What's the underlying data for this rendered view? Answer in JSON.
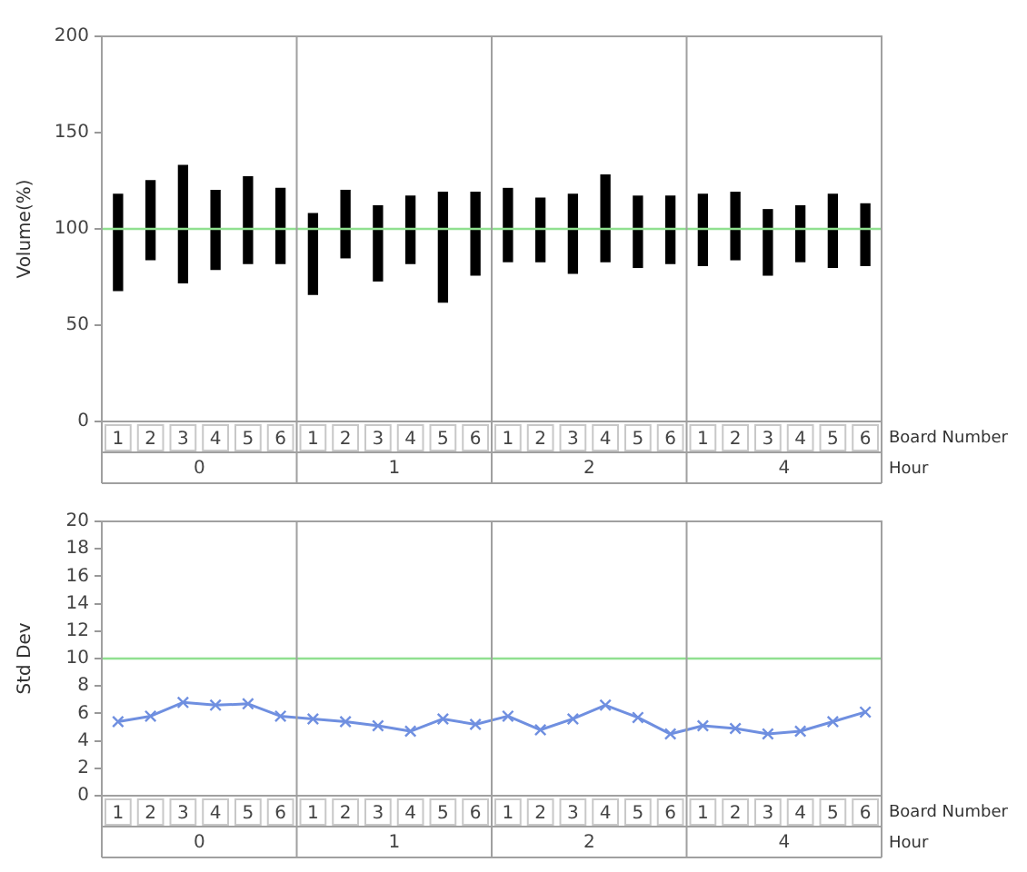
{
  "chart_data": [
    {
      "type": "bar",
      "ylabel": "Volume(%)",
      "xlabel": "Board Number",
      "annotations": [
        "Hour",
        "0",
        "1",
        "2",
        "4"
      ],
      "categories": [
        "1",
        "2",
        "3",
        "4",
        "5",
        "6",
        "1",
        "2",
        "3",
        "4",
        "5",
        "6",
        "1",
        "2",
        "3",
        "4",
        "5",
        "6",
        "1",
        "2",
        "3",
        "4",
        "5",
        "6"
      ],
      "base": [
        68,
        84,
        72,
        79,
        82,
        82,
        66,
        85,
        73,
        82,
        62,
        76,
        83,
        83,
        77,
        83,
        80,
        82,
        81,
        84,
        76,
        83,
        80,
        81
      ],
      "values": [
        50,
        41,
        61,
        41,
        45,
        39,
        42,
        35,
        39,
        35,
        57,
        43,
        38,
        33,
        41,
        45,
        37,
        35,
        37,
        35,
        34,
        29,
        38,
        32
      ],
      "color": "#000000",
      "ylim": [
        0,
        200
      ],
      "yticks": [
        0,
        50,
        100,
        150,
        200
      ],
      "grid": false,
      "legend": false,
      "ref_lines": [
        {
          "axis": "y",
          "value": 100,
          "color": "#90e090"
        }
      ]
    },
    {
      "type": "line",
      "ylabel": "Std Dev",
      "xlabel": "Board Number",
      "annotations": [
        "Hour",
        "0",
        "1",
        "2",
        "4"
      ],
      "categories": [
        "1",
        "2",
        "3",
        "4",
        "5",
        "6",
        "1",
        "2",
        "3",
        "4",
        "5",
        "6",
        "1",
        "2",
        "3",
        "4",
        "5",
        "6",
        "1",
        "2",
        "3",
        "4",
        "5",
        "6"
      ],
      "series": [
        {
          "color": "#6f8fe0",
          "values": [
            5.4,
            5.8,
            6.8,
            6.6,
            6.7,
            5.8,
            5.6,
            5.4,
            5.1,
            4.7,
            5.6,
            5.2,
            5.8,
            4.8,
            5.6,
            6.6,
            5.7,
            4.5,
            5.1,
            4.9,
            4.5,
            4.7,
            5.4,
            6.1
          ]
        }
      ],
      "marker": "cross",
      "line_style": "solid",
      "ylim": [
        0,
        20
      ],
      "yticks": [
        0,
        2,
        4,
        6,
        8,
        10,
        12,
        14,
        16,
        18,
        20
      ],
      "grid": false,
      "legend": false,
      "ref_lines": [
        {
          "axis": "y",
          "value": 10,
          "color": "#90e090"
        }
      ]
    }
  ]
}
